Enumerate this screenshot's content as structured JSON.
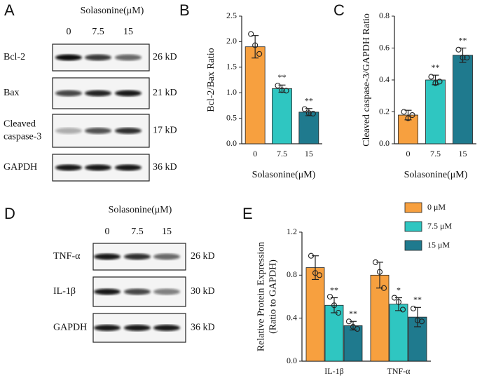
{
  "panel_labels": [
    "A",
    "B",
    "C",
    "D",
    "E"
  ],
  "blots": [
    {
      "title": "Solasonine(μM)",
      "lanes": [
        "0",
        "7.5",
        "15"
      ],
      "rows": [
        {
          "label": [
            "Bcl-2"
          ],
          "size": "26 kD"
        },
        {
          "label": [
            "Bax"
          ],
          "size": "21 kD"
        },
        {
          "label": [
            "Cleaved",
            "caspase-3"
          ],
          "size": "17 kD"
        },
        {
          "label": [
            "GAPDH"
          ],
          "size": "36 kD"
        }
      ]
    },
    {
      "title": "Solasonine(μM)",
      "lanes": [
        "0",
        "7.5",
        "15"
      ],
      "rows": [
        {
          "label": [
            "TNF-α"
          ],
          "size": "26 kD"
        },
        {
          "label": [
            "IL-1β"
          ],
          "size": "30 kD"
        },
        {
          "label": [
            "GAPDH"
          ],
          "size": "36 kD"
        }
      ]
    }
  ],
  "chart_data": [
    {
      "type": "bar",
      "y_label": "Bcl-2/Bax Ratio",
      "x_label": "Solasonine(μM)",
      "categories": [
        "0",
        "7.5",
        "15"
      ],
      "values": [
        1.9,
        1.08,
        0.62
      ],
      "errors": [
        0.22,
        0.07,
        0.07
      ],
      "points": [
        [
          2.15,
          1.93,
          1.76
        ],
        [
          1.14,
          1.05,
          1.04
        ],
        [
          0.68,
          0.6,
          0.59
        ]
      ],
      "annotations": [
        null,
        "**",
        "**"
      ],
      "colors": [
        "#f7a03f",
        "#2fc6c1",
        "#1f7a8e"
      ],
      "ylim": [
        0,
        2.5
      ],
      "yticks": [
        {
          "value": 0,
          "label": "0.0"
        },
        0.5,
        {
          "value": 1,
          "label": "1.0"
        },
        1.5,
        {
          "value": 2,
          "label": "2.0"
        },
        2.5
      ]
    },
    {
      "type": "bar",
      "y_label": "Cleaved caspase-3/GAPDH Ratio",
      "x_label": "Solasonine(μM)",
      "categories": [
        "0",
        "7.5",
        "15"
      ],
      "values": [
        0.18,
        0.4,
        0.555
      ],
      "errors": [
        0.03,
        0.03,
        0.045
      ],
      "points": [
        [
          0.2,
          0.16,
          0.18
        ],
        [
          0.42,
          0.38,
          0.39
        ],
        [
          0.59,
          0.54,
          0.54
        ]
      ],
      "annotations": [
        null,
        "**",
        "**"
      ],
      "colors": [
        "#f7a03f",
        "#2fc6c1",
        "#1f7a8e"
      ],
      "ylim": [
        0,
        0.8
      ],
      "yticks": [
        {
          "value": 0,
          "label": "0.0"
        },
        0.2,
        0.4,
        0.6,
        0.8
      ]
    },
    {
      "type": "grouped_bar",
      "y_label": [
        "Relative Protein Expression",
        "(Ratio to GAPDH)"
      ],
      "categories": [
        "IL-1β",
        "TNF-α"
      ],
      "legend": "top-right",
      "series": [
        {
          "name": "0 μM",
          "color": "#f7a03f",
          "values": [
            0.87,
            0.8
          ],
          "errors": [
            0.11,
            0.12
          ],
          "points": [
            [
              0.98,
              0.82,
              0.8
            ],
            [
              0.92,
              0.83,
              0.68
            ]
          ],
          "annotations": [
            null,
            null
          ]
        },
        {
          "name": "7.5 μM",
          "color": "#2fc6c1",
          "values": [
            0.52,
            0.53
          ],
          "errors": [
            0.07,
            0.06
          ],
          "points": [
            [
              0.6,
              0.52,
              0.45
            ],
            [
              0.59,
              0.55,
              0.48
            ]
          ],
          "annotations": [
            "**",
            "*"
          ]
        },
        {
          "name": "15 μM",
          "color": "#1f7a8e",
          "values": [
            0.33,
            0.41
          ],
          "errors": [
            0.04,
            0.09
          ],
          "points": [
            [
              0.37,
              0.32,
              0.3
            ],
            [
              0.49,
              0.38,
              0.37
            ]
          ],
          "annotations": [
            "**",
            "**"
          ]
        }
      ],
      "ylim": [
        0,
        1.2
      ],
      "yticks": [
        {
          "value": 0,
          "label": "0.0"
        },
        0.4,
        0.8,
        1.2
      ]
    }
  ]
}
